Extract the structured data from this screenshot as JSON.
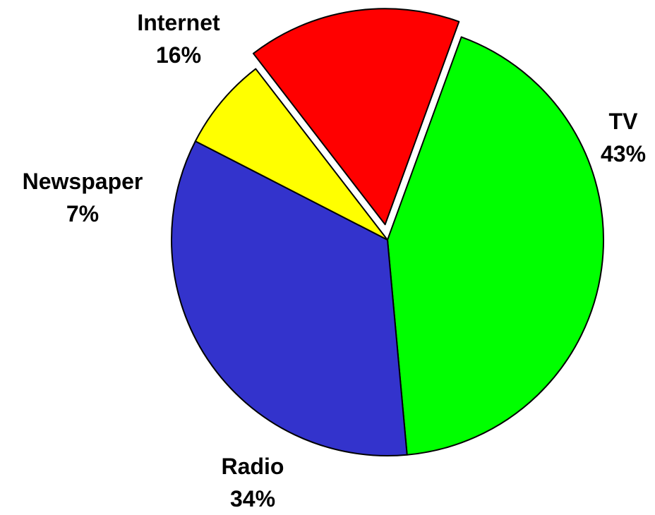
{
  "chart_data": {
    "type": "pie",
    "title": "",
    "slices": [
      {
        "label": "TV",
        "value": 43,
        "pct_label": "43%",
        "color": "#00ff00",
        "exploded": false
      },
      {
        "label": "Radio",
        "value": 34,
        "pct_label": "34%",
        "color": "#3333cc",
        "exploded": false
      },
      {
        "label": "Newspaper",
        "value": 7,
        "pct_label": "7%",
        "color": "#ffff00",
        "exploded": false
      },
      {
        "label": "Internet",
        "value": 16,
        "pct_label": "16%",
        "color": "#ff0000",
        "exploded": true
      }
    ],
    "start_angle_deg": 20,
    "direction": "clockwise",
    "legend": "none"
  }
}
